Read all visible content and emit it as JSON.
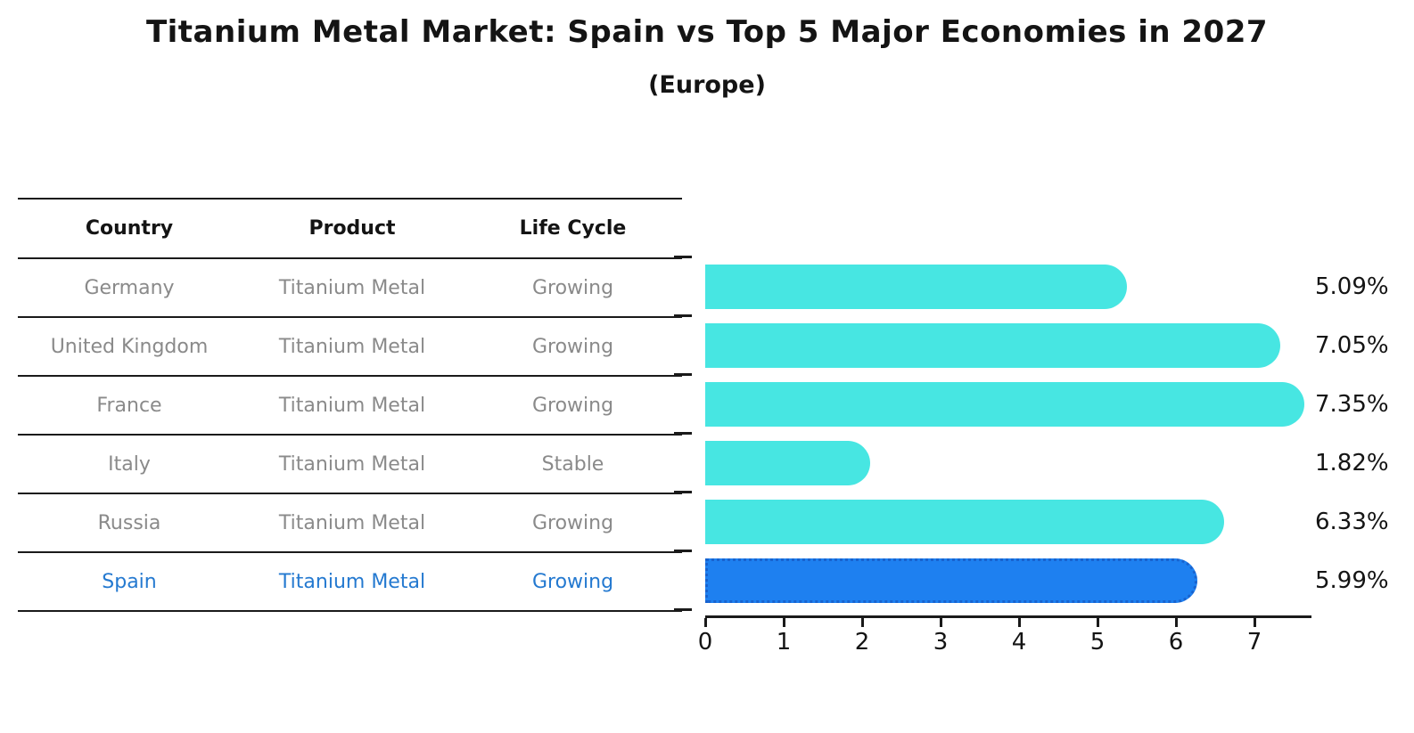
{
  "title": "Titanium Metal Market: Spain vs Top 5 Major Economies in 2027",
  "subtitle": "(Europe)",
  "table": {
    "headers": [
      "Country",
      "Product",
      "Life Cycle"
    ],
    "rows": [
      {
        "country": "Germany",
        "product": "Titanium Metal",
        "life_cycle": "Growing",
        "highlight": false
      },
      {
        "country": "United Kingdom",
        "product": "Titanium Metal",
        "life_cycle": "Growing",
        "highlight": false
      },
      {
        "country": "France",
        "product": "Titanium Metal",
        "life_cycle": "Growing",
        "highlight": false
      },
      {
        "country": "Italy",
        "product": "Titanium Metal",
        "life_cycle": "Stable",
        "highlight": false
      },
      {
        "country": "Russia",
        "product": "Titanium Metal",
        "life_cycle": "Growing",
        "highlight": false
      },
      {
        "country": "Spain",
        "product": "Titanium Metal",
        "life_cycle": "Growing",
        "highlight": true
      }
    ]
  },
  "chart_data": {
    "type": "bar",
    "orientation": "horizontal",
    "title": "Titanium Metal Market: Spain vs Top 5 Major Economies in 2027",
    "subtitle": "(Europe)",
    "categories": [
      "Germany",
      "United Kingdom",
      "France",
      "Italy",
      "Russia",
      "Spain"
    ],
    "values": [
      5.09,
      7.05,
      7.35,
      1.82,
      6.33,
      5.99
    ],
    "value_labels": [
      "5.09%",
      "7.05%",
      "7.35%",
      "1.82%",
      "6.33%",
      "5.99%"
    ],
    "highlight_index": 5,
    "x_ticks": [
      "0",
      "1",
      "2",
      "3",
      "4",
      "5",
      "6",
      "7"
    ],
    "xlim": [
      0,
      7.7
    ],
    "grid": false,
    "legend": "none",
    "bar_color": "#47E6E2",
    "highlight_color": "#1E80F0",
    "highlight_border_color": "#1863cf",
    "axis_color": "#1a1a1a",
    "label_color": "#141414",
    "muted_text_color": "#8a8a8a",
    "highlight_text_color": "#2479d0"
  }
}
